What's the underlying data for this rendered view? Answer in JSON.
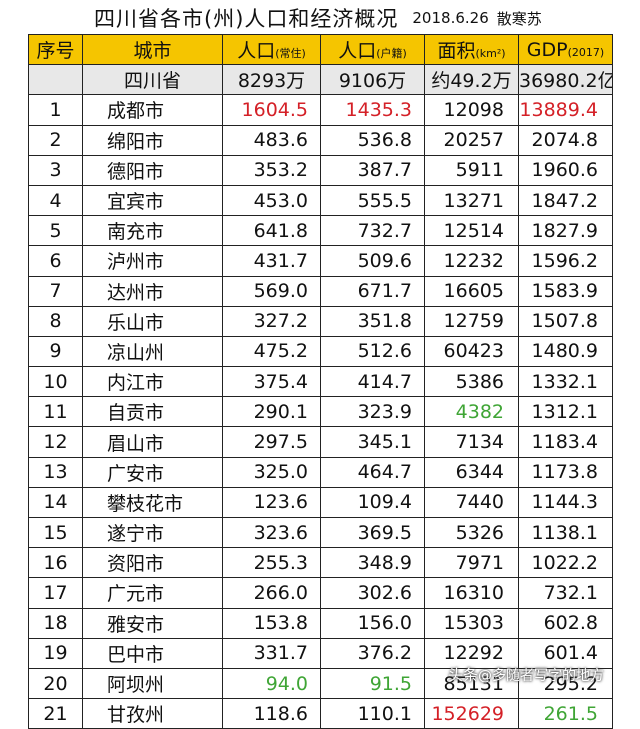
{
  "title": {
    "main": "四川省各市(州)人口和经济概况",
    "date": "2018.6.26",
    "author": "散寒苏"
  },
  "headers": {
    "index": "序号",
    "city": "城市",
    "pop_resident": "人口",
    "pop_resident_note": "(常住)",
    "pop_registered": "人口",
    "pop_registered_note": "(户籍)",
    "area": "面积",
    "area_note": "(km²)",
    "gdp": "GDP",
    "gdp_note": "(2017)"
  },
  "summary": {
    "name": "四川省",
    "pop_resident": "8293万",
    "pop_registered": "9106万",
    "area": "约49.2万",
    "gdp": "36980.2亿"
  },
  "rows": [
    {
      "index": "1",
      "city": "成都市",
      "pop_resident": "1604.5",
      "pop_registered": "1435.3",
      "area": "12098",
      "gdp": "13889.4"
    },
    {
      "index": "2",
      "city": "绵阳市",
      "pop_resident": "483.6",
      "pop_registered": "536.8",
      "area": "20257",
      "gdp": "2074.8"
    },
    {
      "index": "3",
      "city": "德阳市",
      "pop_resident": "353.2",
      "pop_registered": "387.7",
      "area": "5911",
      "gdp": "1960.6"
    },
    {
      "index": "4",
      "city": "宜宾市",
      "pop_resident": "453.0",
      "pop_registered": "555.5",
      "area": "13271",
      "gdp": "1847.2"
    },
    {
      "index": "5",
      "city": "南充市",
      "pop_resident": "641.8",
      "pop_registered": "732.7",
      "area": "12514",
      "gdp": "1827.9"
    },
    {
      "index": "6",
      "city": "泸州市",
      "pop_resident": "431.7",
      "pop_registered": "509.6",
      "area": "12232",
      "gdp": "1596.2"
    },
    {
      "index": "7",
      "city": "达州市",
      "pop_resident": "569.0",
      "pop_registered": "671.7",
      "area": "16605",
      "gdp": "1583.9"
    },
    {
      "index": "8",
      "city": "乐山市",
      "pop_resident": "327.2",
      "pop_registered": "351.8",
      "area": "12759",
      "gdp": "1507.8"
    },
    {
      "index": "9",
      "city": "凉山州",
      "pop_resident": "475.2",
      "pop_registered": "512.6",
      "area": "60423",
      "gdp": "1480.9"
    },
    {
      "index": "10",
      "city": "内江市",
      "pop_resident": "375.4",
      "pop_registered": "414.7",
      "area": "5386",
      "gdp": "1332.1"
    },
    {
      "index": "11",
      "city": "自贡市",
      "pop_resident": "290.1",
      "pop_registered": "323.9",
      "area": "4382",
      "gdp": "1312.1"
    },
    {
      "index": "12",
      "city": "眉山市",
      "pop_resident": "297.5",
      "pop_registered": "345.1",
      "area": "7134",
      "gdp": "1183.4"
    },
    {
      "index": "13",
      "city": "广安市",
      "pop_resident": "325.0",
      "pop_registered": "464.7",
      "area": "6344",
      "gdp": "1173.8"
    },
    {
      "index": "14",
      "city": "攀枝花市",
      "pop_resident": "123.6",
      "pop_registered": "109.4",
      "area": "7440",
      "gdp": "1144.3"
    },
    {
      "index": "15",
      "city": "遂宁市",
      "pop_resident": "323.6",
      "pop_registered": "369.5",
      "area": "5326",
      "gdp": "1138.1"
    },
    {
      "index": "16",
      "city": "资阳市",
      "pop_resident": "255.3",
      "pop_registered": "348.9",
      "area": "7971",
      "gdp": "1022.2"
    },
    {
      "index": "17",
      "city": "广元市",
      "pop_resident": "266.0",
      "pop_registered": "302.6",
      "area": "16310",
      "gdp": "732.1"
    },
    {
      "index": "18",
      "city": "雅安市",
      "pop_resident": "153.8",
      "pop_registered": "156.0",
      "area": "15303",
      "gdp": "602.8"
    },
    {
      "index": "19",
      "city": "巴中市",
      "pop_resident": "331.7",
      "pop_registered": "376.2",
      "area": "12292",
      "gdp": "601.4"
    },
    {
      "index": "20",
      "city": "阿坝州",
      "pop_resident": "94.0",
      "pop_registered": "91.5",
      "area": "85131",
      "gdp": "295.2"
    },
    {
      "index": "21",
      "city": "甘孜州",
      "pop_resident": "118.6",
      "pop_registered": "110.1",
      "area": "152629",
      "gdp": "261.5"
    }
  ],
  "watermark": {
    "source": "头条",
    "handle": "@多随者写字的地方"
  },
  "colors": {
    "header_bg": "#f5c500",
    "summary_bg": "#e8e8e8",
    "highlight_max": "#d42027",
    "highlight_min": "#3fa535"
  },
  "highlights": {
    "max": {
      "row": "1",
      "fields": [
        "pop_resident",
        "pop_registered",
        "gdp"
      ]
    },
    "min": [
      {
        "row": "11",
        "fields": [
          "area"
        ]
      },
      {
        "row": "20",
        "fields": [
          "pop_resident",
          "pop_registered"
        ]
      },
      {
        "row": "21",
        "fields": [
          "gdp"
        ]
      }
    ],
    "max_extra": [
      {
        "row": "21",
        "fields": [
          "area"
        ]
      }
    ]
  }
}
